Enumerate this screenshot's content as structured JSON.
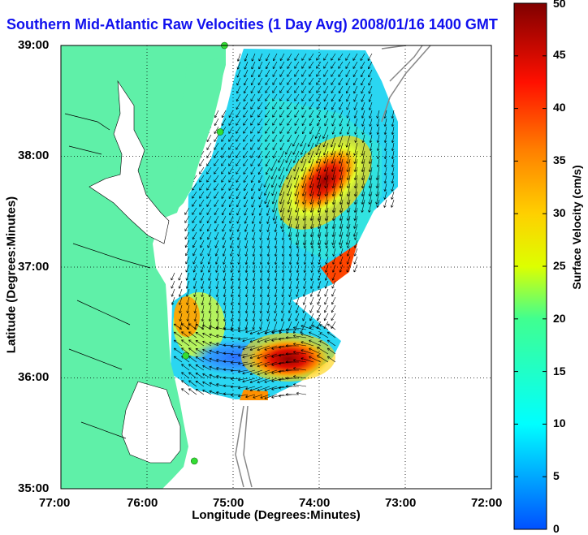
{
  "title": "Southern Mid-Atlantic Raw Velocities (1 Day Avg) 2008/01/16 1400 GMT",
  "xlabel": "Longitude (Degrees:Minutes)",
  "ylabel": "Latitude (Degrees:Minutes)",
  "colorbar_label": "Surface Velocity (cm/s)",
  "x_ticks": [
    "77:00",
    "76:00",
    "75:00",
    "74:00",
    "73:00",
    "72:00"
  ],
  "y_ticks": [
    "39:00",
    "38:00",
    "37:00",
    "36:00",
    "35:00"
  ],
  "cb_ticks": [
    "0",
    "5",
    "10",
    "15",
    "20",
    "25",
    "30",
    "35",
    "40",
    "45",
    "50"
  ],
  "colors": {
    "land": "#5ff0a8",
    "title": "#1010ee",
    "station": "#33dd33"
  },
  "chart_data": {
    "type": "heatmap",
    "title": "Southern Mid-Atlantic Raw Velocities (1 Day Avg) 2008/01/16 1400 GMT",
    "xlabel": "Longitude (Degrees:Minutes)",
    "ylabel": "Latitude (Degrees:Minutes)",
    "xlim": [
      -77,
      -72
    ],
    "ylim": [
      35,
      39
    ],
    "colorbar": {
      "label": "Surface Velocity (cm/s)",
      "min": 0,
      "max": 50,
      "colormap": "jet"
    },
    "grid": true,
    "stations": [
      {
        "lon": -75.1,
        "lat": 39.0
      },
      {
        "lon": -75.15,
        "lat": 38.22
      },
      {
        "lon": -75.55,
        "lat": 36.2
      },
      {
        "lon": -75.45,
        "lat": 35.25
      }
    ],
    "features": [
      {
        "name": "high-velocity-core-north",
        "lon": -73.95,
        "lat": 37.7,
        "value": 47
      },
      {
        "name": "high-velocity-core-south",
        "lon": -74.4,
        "lat": 36.1,
        "value": 47
      },
      {
        "name": "low-velocity-nearshore",
        "lon": -75.0,
        "lat": 36.35,
        "value": 8
      }
    ]
  }
}
